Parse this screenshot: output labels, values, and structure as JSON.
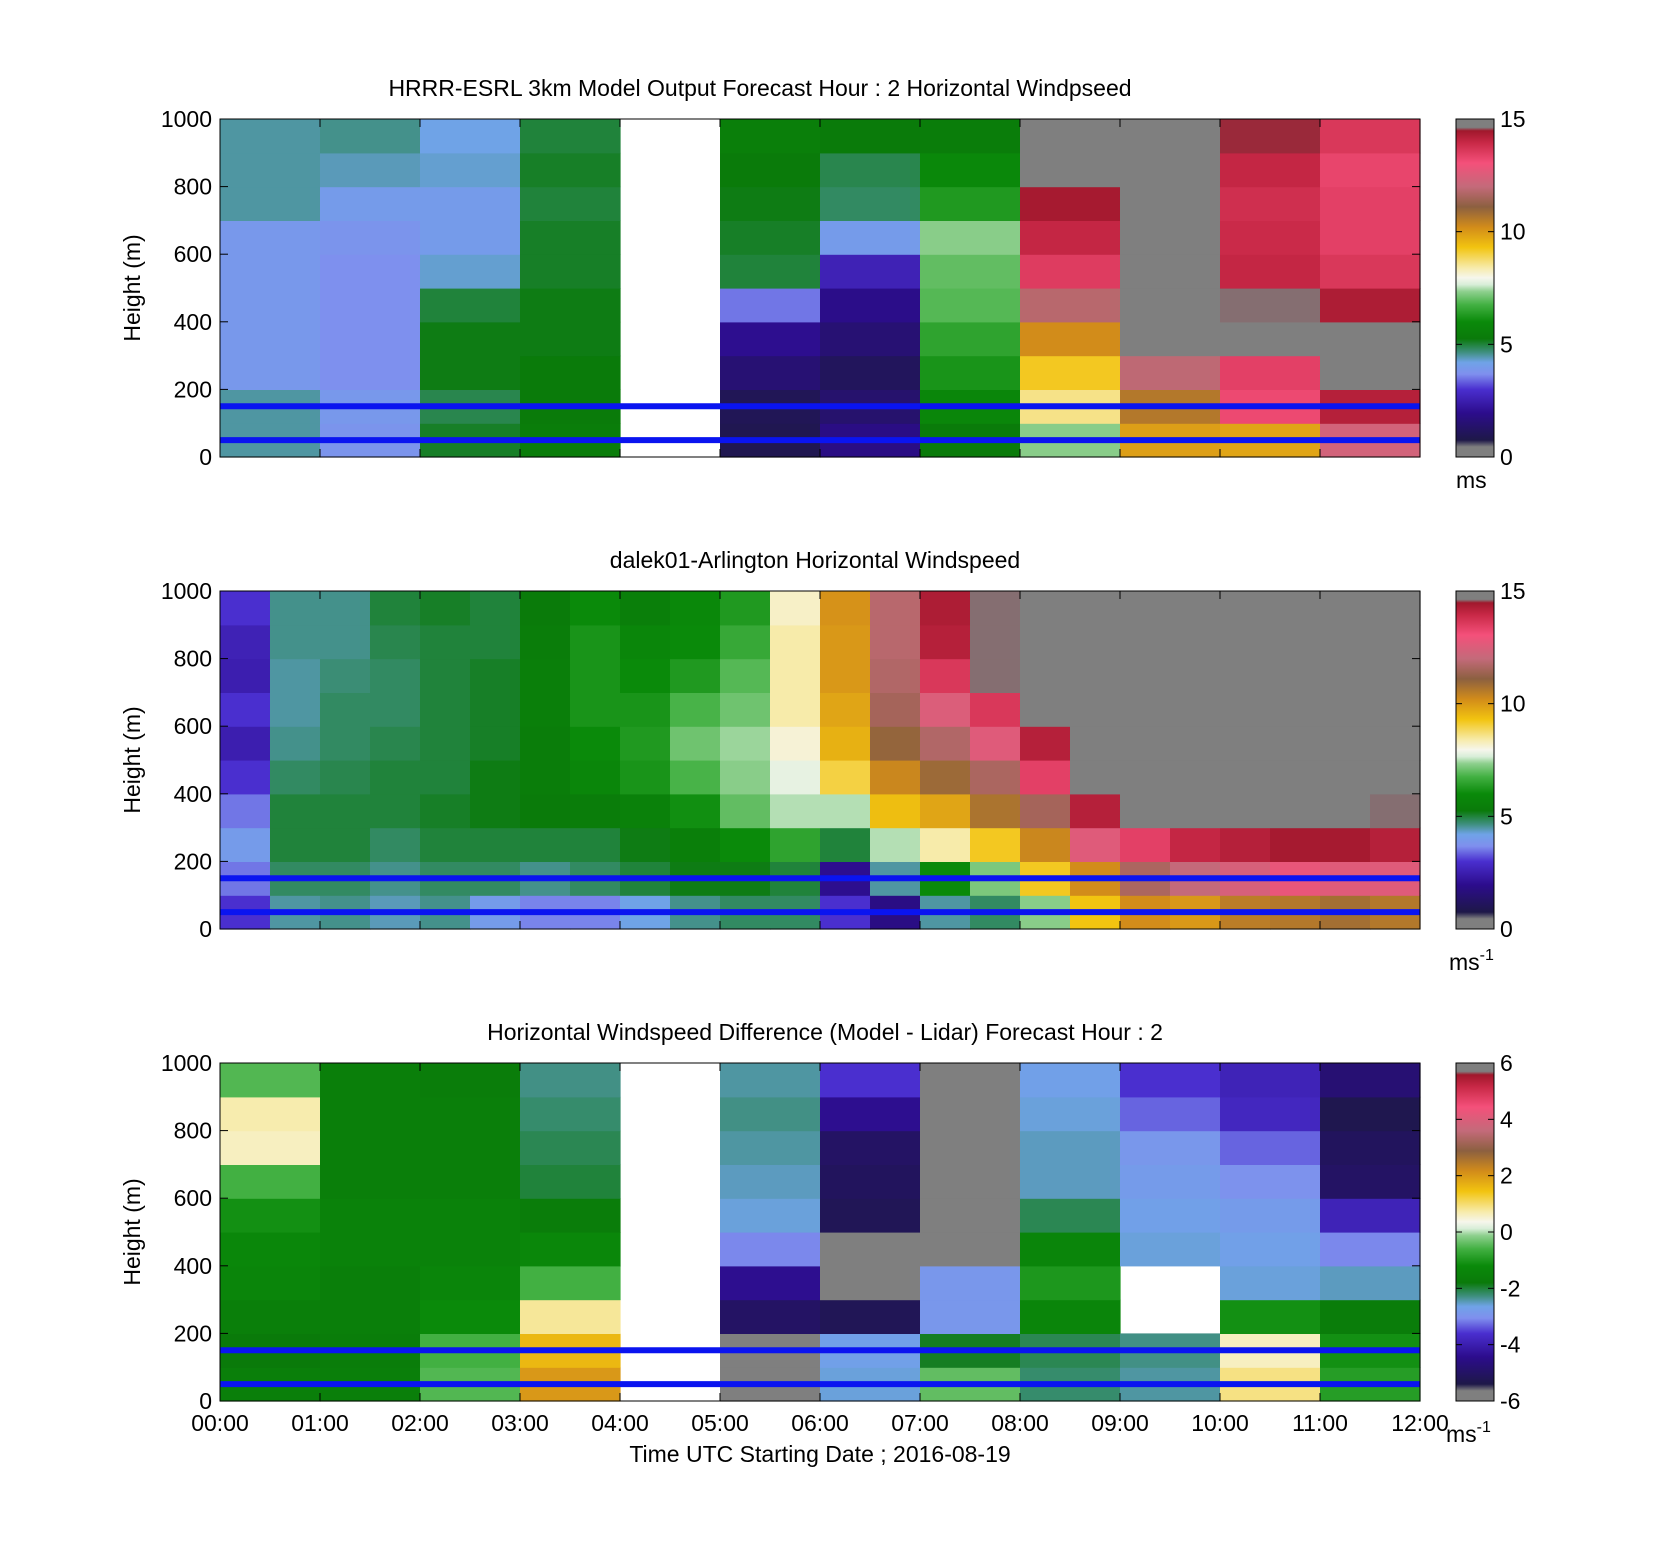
{
  "chart_data": [
    {
      "type": "heatmap",
      "title": "HRRR-ESRL 3km Model Output   Forecast Hour : 2 Horizontal Windpseed",
      "ylabel": "Height (m)",
      "xlabel": "",
      "ylim": [
        0,
        1000
      ],
      "y_ticks": [
        "0",
        "200",
        "400",
        "600",
        "800",
        "1000"
      ],
      "x_ticks": [],
      "reference_lines_m": [
        50,
        150
      ],
      "colorbar": {
        "range": [
          0,
          15
        ],
        "ticks": [
          "0",
          "5",
          "10",
          "15"
        ],
        "unit": "ms",
        "unit_sup": ""
      },
      "cell_height_m": 100,
      "columns": [
        {
          "x": [
            0,
            1
          ],
          "cells": [
            4.5,
            4.5,
            3.9,
            3.9,
            3.9,
            3.9,
            3.9,
            4.5,
            4.5,
            4.5
          ]
        },
        {
          "x": [
            1,
            2
          ],
          "cells": [
            3.8,
            3.9,
            3.7,
            3.7,
            3.7,
            3.7,
            3.8,
            4.0,
            4.4,
            4.6
          ]
        },
        {
          "x": [
            2,
            3
          ],
          "cells": [
            5.1,
            4.9,
            5.2,
            5.2,
            5.0,
            4.3,
            4.0,
            4.0,
            4.3,
            4.2
          ]
        },
        {
          "x": [
            3,
            4
          ],
          "cells": [
            5.4,
            5.3,
            5.3,
            5.2,
            5.2,
            5.1,
            5.1,
            5.0,
            5.1,
            5.0
          ]
        },
        {
          "x": [
            4,
            5
          ],
          "cells": [
            null,
            null,
            null,
            null,
            null,
            null,
            null,
            null,
            null,
            null
          ]
        },
        {
          "x": [
            5,
            6
          ],
          "cells": [
            0.9,
            1.0,
            1.5,
            2.0,
            3.5,
            5.0,
            5.1,
            5.2,
            5.3,
            5.5
          ]
        },
        {
          "x": [
            6,
            7
          ],
          "cells": [
            1.8,
            1.4,
            1.1,
            1.5,
            1.9,
            2.6,
            4.0,
            4.8,
            4.9,
            5.3
          ]
        },
        {
          "x": [
            7,
            8
          ],
          "cells": [
            5.3,
            5.8,
            6.2,
            6.5,
            6.9,
            7.0,
            7.3,
            6.3,
            5.9,
            5.4
          ]
        },
        {
          "x": [
            8,
            9
          ],
          "cells": [
            7.3,
            8.6,
            9.2,
            10.2,
            11.8,
            13.5,
            14.0,
            14.4,
            14.8,
            14.8
          ]
        },
        {
          "x": [
            9,
            10
          ],
          "cells": [
            9.9,
            10.6,
            11.9,
            14.7,
            15.6,
            15.6,
            15.6,
            15.6,
            15.6,
            15.6
          ]
        },
        {
          "x": [
            10,
            11
          ],
          "cells": [
            9.8,
            13.2,
            13.4,
            15.6,
            14.6,
            14.0,
            13.9,
            13.8,
            14.0,
            14.5
          ]
        },
        {
          "x": [
            11,
            12
          ],
          "cells": [
            12.3,
            14.2,
            14.8,
            14.8,
            14.3,
            13.6,
            13.4,
            13.4,
            13.3,
            13.6
          ]
        }
      ]
    },
    {
      "type": "heatmap",
      "title": "dalek01-Arlington  Horizontal Windspeed",
      "ylabel": "Height (m)",
      "xlabel": "",
      "ylim": [
        0,
        1000
      ],
      "y_ticks": [
        "0",
        "200",
        "400",
        "600",
        "800",
        "1000"
      ],
      "x_ticks": [],
      "reference_lines_m": [
        50,
        150
      ],
      "colorbar": {
        "range": [
          0,
          15
        ],
        "ticks": [
          "0",
          "5",
          "10",
          "15"
        ],
        "unit": "ms",
        "unit_sup": "-1"
      },
      "observation_profiles": [
        {
          "t": 0.0,
          "speeds": [
            3.0,
            3.5,
            4.0,
            3.5,
            3.0,
            2.5,
            3.0,
            2.5,
            2.6,
            3.0
          ]
        },
        {
          "t": 0.5,
          "speeds": [
            4.5,
            4.8,
            5.0,
            5.0,
            4.8,
            4.6,
            4.5,
            4.5,
            4.6,
            4.6
          ]
        },
        {
          "t": 1.0,
          "speeds": [
            4.6,
            4.8,
            5.0,
            5.0,
            4.9,
            4.8,
            4.8,
            4.7,
            4.6,
            4.6
          ]
        },
        {
          "t": 1.5,
          "speeds": [
            4.4,
            4.6,
            4.8,
            5.0,
            5.0,
            4.9,
            4.8,
            4.8,
            4.9,
            5.0
          ]
        },
        {
          "t": 2.0,
          "speeds": [
            4.6,
            4.8,
            5.0,
            5.1,
            5.0,
            5.0,
            5.0,
            5.0,
            5.0,
            5.1
          ]
        },
        {
          "t": 2.5,
          "speeds": [
            4.0,
            4.8,
            5.0,
            5.2,
            5.2,
            5.1,
            5.1,
            5.1,
            5.0,
            5.0
          ]
        },
        {
          "t": 3.0,
          "speeds": [
            3.6,
            4.6,
            5.0,
            5.3,
            5.4,
            5.4,
            5.5,
            5.5,
            5.4,
            5.3
          ]
        },
        {
          "t": 3.5,
          "speeds": [
            3.6,
            4.8,
            5.0,
            5.4,
            5.8,
            6.0,
            6.2,
            6.2,
            6.2,
            6.0
          ]
        },
        {
          "t": 4.0,
          "speeds": [
            4.2,
            5.0,
            5.2,
            5.6,
            6.2,
            6.3,
            6.2,
            6.0,
            5.8,
            5.5
          ]
        },
        {
          "t": 4.5,
          "speeds": [
            4.6,
            5.2,
            5.5,
            6.1,
            6.8,
            7.1,
            6.8,
            6.3,
            6.0,
            5.9
          ]
        },
        {
          "t": 5.0,
          "speeds": [
            4.8,
            5.2,
            6.0,
            7.0,
            7.3,
            7.4,
            7.1,
            6.9,
            6.6,
            6.3
          ]
        },
        {
          "t": 5.5,
          "speeds": [
            4.8,
            5.0,
            6.5,
            7.5,
            7.8,
            8.1,
            8.4,
            8.4,
            8.4,
            8.2
          ]
        },
        {
          "t": 6.0,
          "speeds": [
            3.0,
            2.0,
            5.0,
            7.5,
            9.0,
            9.6,
            9.8,
            10.0,
            10.0,
            10.1
          ]
        },
        {
          "t": 6.5,
          "speeds": [
            1.8,
            4.5,
            7.5,
            9.4,
            10.3,
            11.0,
            11.5,
            11.7,
            11.8,
            11.8
          ]
        },
        {
          "t": 7.0,
          "speeds": [
            4.5,
            6.0,
            8.4,
            9.8,
            10.9,
            11.7,
            12.5,
            13.6,
            14.2,
            14.3
          ]
        },
        {
          "t": 7.5,
          "speeds": [
            4.8,
            7.2,
            9.2,
            10.7,
            11.6,
            12.6,
            13.6,
            14.6,
            14.6,
            14.6
          ]
        },
        {
          "t": 8.0,
          "speeds": [
            7.3,
            9.2,
            10.3,
            11.5,
            13.4,
            14.2,
            14.8,
            15.6,
            15.6,
            15.6
          ]
        },
        {
          "t": 8.5,
          "speeds": [
            9.3,
            10.2,
            12.6,
            14.2,
            15.6,
            15.6,
            15.6,
            15.6,
            15.6,
            15.6
          ]
        },
        {
          "t": 9.0,
          "speeds": [
            10.2,
            11.6,
            13.4,
            15.6,
            15.6,
            15.6,
            15.6,
            15.6,
            15.6,
            15.6
          ]
        },
        {
          "t": 9.5,
          "speeds": [
            10.0,
            12.0,
            14.0,
            15.6,
            15.6,
            15.6,
            15.6,
            15.6,
            15.6,
            15.6
          ]
        },
        {
          "t": 10.0,
          "speeds": [
            10.5,
            12.4,
            14.2,
            15.6,
            15.6,
            15.6,
            15.6,
            15.6,
            15.6,
            15.6
          ]
        },
        {
          "t": 10.5,
          "speeds": [
            10.6,
            12.8,
            14.4,
            15.6,
            15.6,
            15.6,
            15.6,
            15.6,
            15.6,
            15.6
          ]
        },
        {
          "t": 11.0,
          "speeds": [
            10.8,
            12.6,
            14.4,
            15.6,
            15.6,
            15.6,
            15.6,
            15.6,
            15.6,
            15.6
          ]
        },
        {
          "t": 11.5,
          "speeds": [
            10.6,
            12.6,
            14.2,
            14.6,
            15.6,
            15.6,
            15.6,
            15.6,
            15.6,
            15.6
          ]
        }
      ]
    },
    {
      "type": "heatmap",
      "title": "Horizontal Windspeed Difference (Model - Lidar) Forecast Hour : 2",
      "ylabel": "Height (m)",
      "xlabel": "Time UTC  Starting Date ; 2016-08-19",
      "ylim": [
        0,
        1000
      ],
      "y_ticks": [
        "0",
        "200",
        "400",
        "600",
        "800",
        "1000"
      ],
      "x_ticks": [
        "00:00",
        "01:00",
        "02:00",
        "03:00",
        "04:00",
        "05:00",
        "06:00",
        "07:00",
        "08:00",
        "09:00",
        "10:00",
        "11:00",
        "12:00"
      ],
      "reference_lines_m": [
        50,
        150
      ],
      "colorbar": {
        "range": [
          -6,
          6
        ],
        "ticks": [
          "-6",
          "-4",
          "-2",
          "0",
          "2",
          "4",
          "6"
        ],
        "unit": "ms",
        "unit_sup": "-1"
      },
      "cell_height_m": 100,
      "columns": [
        {
          "x": [
            0,
            1
          ],
          "cells": [
            -1.6,
            -1.8,
            -1.6,
            -1.4,
            -1.3,
            -1.1,
            -0.6,
            0.6,
            0.7,
            -0.5
          ]
        },
        {
          "x": [
            1,
            2
          ],
          "cells": [
            -1.6,
            -1.7,
            -1.6,
            -1.6,
            -1.5,
            -1.5,
            -1.6,
            -1.6,
            -1.6,
            -1.6
          ]
        },
        {
          "x": [
            2,
            3
          ],
          "cells": [
            -0.5,
            -0.6,
            -1.2,
            -1.4,
            -1.5,
            -1.5,
            -1.6,
            -1.6,
            -1.6,
            -1.7
          ]
        },
        {
          "x": [
            3,
            4
          ],
          "cells": [
            2.0,
            1.6,
            0.8,
            -0.6,
            -1.3,
            -1.7,
            -2.0,
            -2.1,
            -2.2,
            -2.3
          ]
        },
        {
          "x": [
            4,
            5
          ],
          "cells": [
            null,
            null,
            null,
            null,
            null,
            null,
            null,
            null,
            null,
            null
          ]
        },
        {
          "x": [
            5,
            6
          ],
          "cells": [
            -6.1,
            -6.1,
            -5.0,
            -4.4,
            -3.1,
            -2.6,
            -2.5,
            -2.4,
            -2.3,
            -2.4
          ]
        },
        {
          "x": [
            6,
            7
          ],
          "cells": [
            -2.6,
            -2.7,
            -5.2,
            -5.8,
            -5.8,
            -5.2,
            -5.1,
            -5.0,
            -4.4,
            -3.6
          ]
        },
        {
          "x": [
            7,
            8
          ],
          "cells": [
            -0.4,
            -1.9,
            -2.9,
            -2.9,
            -5.8,
            -6.3,
            -6.3,
            -6.3,
            -6.3,
            -6.3
          ]
        },
        {
          "x": [
            8,
            9
          ],
          "cells": [
            -2.2,
            -2.1,
            -1.4,
            -1.0,
            -1.4,
            -2.1,
            -2.5,
            -2.5,
            -2.6,
            -2.7
          ]
        },
        {
          "x": [
            9,
            10
          ],
          "cells": [
            -2.4,
            -2.3,
            null,
            null,
            -2.6,
            -2.7,
            -2.8,
            -2.9,
            -3.3,
            -3.6
          ]
        },
        {
          "x": [
            10,
            11
          ],
          "cells": [
            0.9,
            0.6,
            -1.1,
            -2.6,
            -2.7,
            -2.8,
            -3.0,
            -3.3,
            -3.8,
            -3.9
          ]
        },
        {
          "x": [
            11,
            12
          ],
          "cells": [
            -0.9,
            -1.1,
            -1.7,
            -2.5,
            -3.1,
            -3.9,
            -5.0,
            -5.1,
            -5.3,
            -4.8
          ]
        }
      ]
    }
  ]
}
